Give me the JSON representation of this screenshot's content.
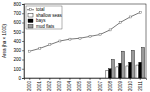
{
  "chart_data": {
    "type": "bar",
    "y_label": "Area (ha × 1000)",
    "categories": [
      "2000",
      "2001",
      "2002",
      "2003",
      "2004",
      "2005",
      "2006",
      "2007",
      "2008",
      "2009",
      "2010",
      "2011"
    ],
    "series": [
      {
        "name": "total",
        "type": "line",
        "color": "#555555",
        "marker": "square",
        "values": [
          290,
          320,
          360,
          400,
          420,
          430,
          450,
          470,
          520,
          600,
          660,
          710
        ]
      },
      {
        "name": "shallow seas",
        "type": "bar",
        "color": "#ffffff",
        "values": [
          null,
          null,
          null,
          null,
          null,
          null,
          null,
          null,
          80,
          120,
          130,
          140
        ]
      },
      {
        "name": "bays",
        "type": "bar",
        "color": "#000000",
        "values": [
          null,
          null,
          null,
          null,
          null,
          null,
          null,
          null,
          100,
          160,
          170,
          170
        ]
      },
      {
        "name": "mud flats",
        "type": "bar",
        "color": "#999999",
        "values": [
          null,
          null,
          null,
          null,
          null,
          null,
          null,
          null,
          200,
          290,
          300,
          330
        ]
      }
    ],
    "ylim": [
      0,
      800
    ],
    "yticks": [
      0,
      100,
      200,
      300,
      400,
      500,
      600,
      700,
      800
    ],
    "legend": "upper-left",
    "grid": false
  }
}
